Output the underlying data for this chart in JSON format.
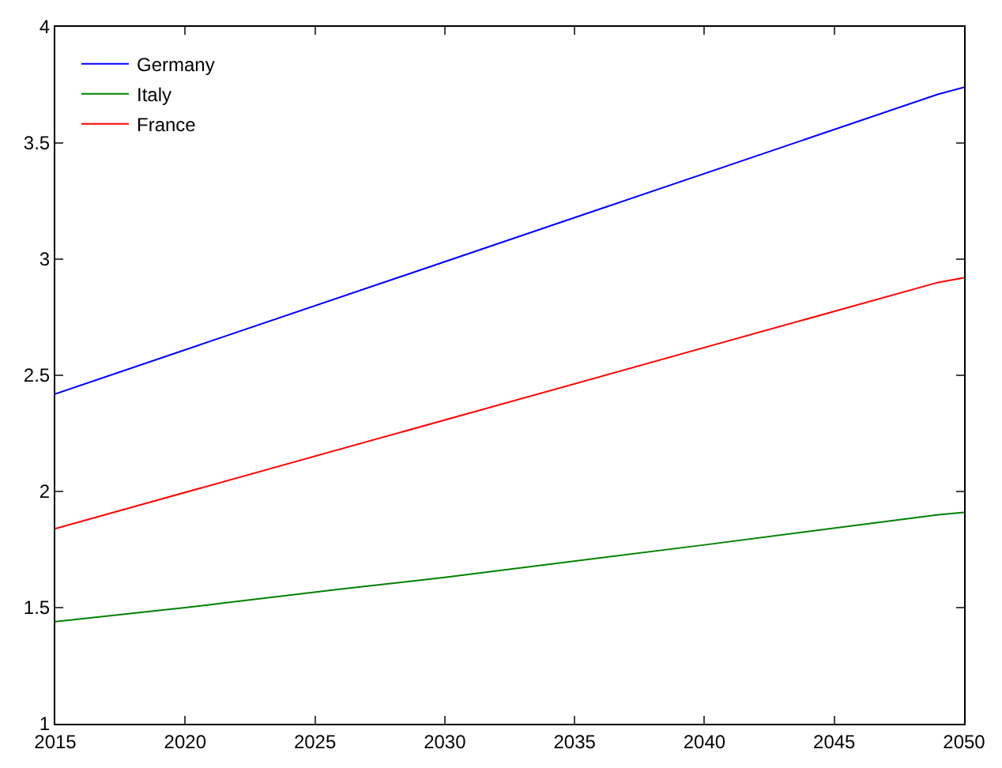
{
  "chart_data": {
    "type": "line",
    "xlim": [
      2015,
      2050
    ],
    "ylim": [
      1,
      4
    ],
    "xticks": [
      2015,
      2020,
      2025,
      2030,
      2035,
      2040,
      2045,
      2050
    ],
    "yticks": [
      1,
      1.5,
      2,
      2.5,
      3,
      3.5,
      4
    ],
    "legend": "top left",
    "marker": "none",
    "line_style": "solid",
    "series": [
      {
        "name": "Germany",
        "color": "#0000ff",
        "x": [
          2015,
          2049,
          2050
        ],
        "values": [
          2.42,
          3.71,
          3.74
        ]
      },
      {
        "name": "Italy",
        "color": "#008000",
        "x": [
          2015,
          2020,
          2026,
          2030,
          2040,
          2049,
          2050
        ],
        "values": [
          1.44,
          1.5,
          1.58,
          1.63,
          1.77,
          1.9,
          1.91
        ]
      },
      {
        "name": "France",
        "color": "#ff0000",
        "x": [
          2015,
          2049,
          2050
        ],
        "values": [
          1.84,
          2.9,
          2.92
        ]
      }
    ]
  }
}
